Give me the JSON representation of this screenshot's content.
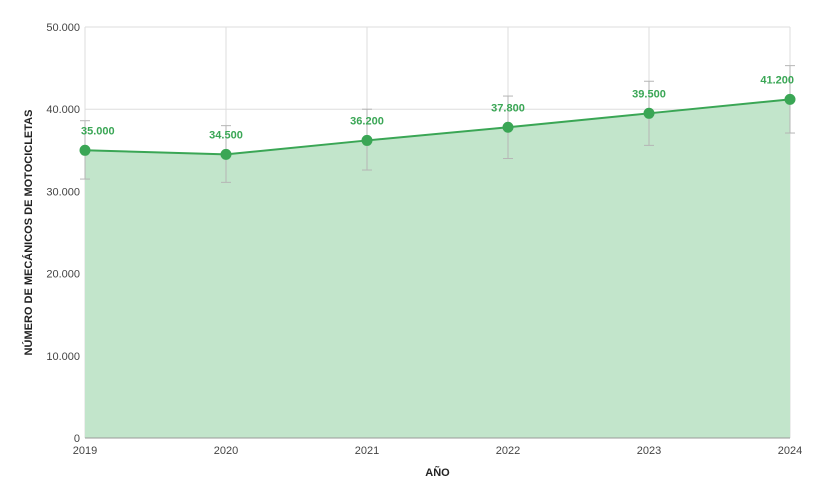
{
  "chart_data": {
    "type": "area",
    "x": [
      "2019",
      "2020",
      "2021",
      "2022",
      "2023",
      "2024"
    ],
    "series": [
      {
        "values": [
          35000,
          34500,
          36200,
          37800,
          39500,
          41200
        ],
        "value_labels": [
          "35.000",
          "34.500",
          "36.200",
          "37.800",
          "39.500",
          "41.200"
        ],
        "error_upper": [
          38600,
          38000,
          40000,
          41600,
          43400,
          45300
        ],
        "error_lower": [
          31500,
          31100,
          32600,
          34000,
          35600,
          37100
        ]
      }
    ],
    "xlabel": "AÑO",
    "ylabel": "NÚMERO DE MECÁNICOS DE MOTOCICLETAS",
    "ylim": [
      0,
      50000
    ],
    "yticks": [
      0,
      10000,
      20000,
      30000,
      40000,
      50000
    ],
    "ytick_labels": [
      "0",
      "10.000",
      "20.000",
      "30.000",
      "40.000",
      "50.000"
    ],
    "grid": true,
    "colors": {
      "line": "#3aa655",
      "fill": "#c2e5cb",
      "label": "#3aa655",
      "error": "#b5b5b5",
      "grid": "#dddddd"
    }
  }
}
